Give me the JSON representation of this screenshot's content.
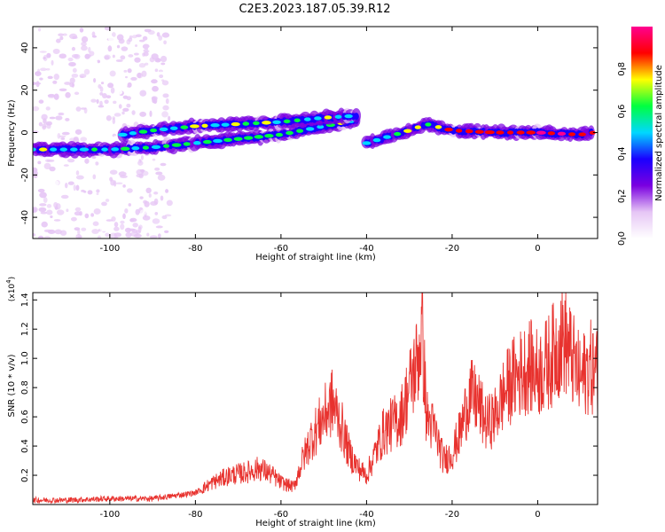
{
  "title": "C2E3.2023.187.05.39.R12",
  "colors": {
    "snr_line": "#e8322e",
    "axis": "#000000"
  },
  "chart_data": [
    {
      "type": "heatmap",
      "title": "C2E3.2023.187.05.39.R12",
      "xlabel": "Height of straight line (km)",
      "ylabel": "Frequency (Hz)",
      "xlim": [
        -118,
        14
      ],
      "ylim": [
        -50,
        50
      ],
      "xticks": [
        -100,
        -80,
        -60,
        -40,
        -20,
        0
      ],
      "yticks": [
        -40,
        -20,
        0,
        20,
        40
      ],
      "colorbar": {
        "label": "Normalized spectral amplitude",
        "range": [
          0,
          1
        ],
        "ticks": [
          "0.0",
          "0.2",
          "0.4",
          "0.6",
          "0.8"
        ],
        "colors": [
          "#ffffff",
          "#e6c6f5",
          "#7a00e0",
          "#1a00ff",
          "#00d8ff",
          "#00ff40",
          "#ffff00",
          "#ff0000",
          "#ff0090"
        ]
      },
      "ridges": [
        {
          "name": "lower",
          "points": [
            [
              -118,
              -8
            ],
            [
              -100,
              -8
            ],
            [
              -90,
              -7
            ],
            [
              -80,
              -5
            ],
            [
              -70,
              -3
            ],
            [
              -60,
              -1
            ],
            [
              -50,
              3
            ],
            [
              -42,
              6
            ]
          ]
        },
        {
          "name": "upper",
          "points": [
            [
              -97,
              -1
            ],
            [
              -90,
              1
            ],
            [
              -80,
              3
            ],
            [
              -70,
              4
            ],
            [
              -60,
              5
            ],
            [
              -50,
              7
            ],
            [
              -42,
              8
            ]
          ]
        },
        {
          "name": "right",
          "points": [
            [
              -40,
              -5
            ],
            [
              -35,
              -2
            ],
            [
              -30,
              1
            ],
            [
              -26,
              4
            ],
            [
              -22,
              2
            ],
            [
              -20,
              1
            ],
            [
              -10,
              0
            ],
            [
              0,
              0
            ],
            [
              10,
              -1
            ],
            [
              13,
              0
            ]
          ]
        }
      ]
    },
    {
      "type": "line",
      "xlabel": "Height of straight line (km)",
      "ylabel": "SNR (10 * v/v)",
      "scale_label": "(x10",
      "scale_exp": "4",
      "scale_close": ")",
      "xlim": [
        -118,
        14
      ],
      "ylim": [
        0,
        1.45
      ],
      "xticks": [
        -100,
        -80,
        -60,
        -40,
        -20,
        0
      ],
      "yticks": [
        0.2,
        0.4,
        0.6,
        0.8,
        1.0,
        1.2,
        1.4
      ],
      "ytick_labels": [
        "0.2",
        "0.4",
        "0.6",
        "0.8",
        "1.0",
        "1.2",
        "1.4"
      ],
      "series": [
        {
          "points": [
            [
              -118,
              0.03
            ],
            [
              -110,
              0.03
            ],
            [
              -100,
              0.04
            ],
            [
              -90,
              0.04
            ],
            [
              -85,
              0.06
            ],
            [
              -80,
              0.08
            ],
            [
              -76,
              0.15
            ],
            [
              -72,
              0.2
            ],
            [
              -68,
              0.22
            ],
            [
              -65,
              0.25
            ],
            [
              -62,
              0.2
            ],
            [
              -60,
              0.15
            ],
            [
              -57,
              0.12
            ],
            [
              -55,
              0.3
            ],
            [
              -53,
              0.45
            ],
            [
              -50,
              0.6
            ],
            [
              -48,
              0.7
            ],
            [
              -46,
              0.55
            ],
            [
              -44,
              0.35
            ],
            [
              -42,
              0.25
            ],
            [
              -40,
              0.2
            ],
            [
              -38,
              0.35
            ],
            [
              -36,
              0.5
            ],
            [
              -34,
              0.55
            ],
            [
              -32,
              0.6
            ],
            [
              -30,
              0.8
            ],
            [
              -29,
              0.9
            ],
            [
              -28,
              1.0
            ],
            [
              -27,
              1.2
            ],
            [
              -26,
              0.6
            ],
            [
              -24,
              0.5
            ],
            [
              -22,
              0.3
            ],
            [
              -20,
              0.35
            ],
            [
              -18,
              0.5
            ],
            [
              -16,
              0.75
            ],
            [
              -14,
              0.7
            ],
            [
              -12,
              0.55
            ],
            [
              -10,
              0.6
            ],
            [
              -8,
              0.75
            ],
            [
              -6,
              0.85
            ],
            [
              -4,
              0.9
            ],
            [
              -2,
              0.95
            ],
            [
              0,
              0.9
            ],
            [
              2,
              0.95
            ],
            [
              4,
              1.05
            ],
            [
              6,
              1.15
            ],
            [
              8,
              1.0
            ],
            [
              10,
              0.85
            ],
            [
              12,
              0.95
            ],
            [
              14,
              0.9
            ]
          ]
        }
      ]
    }
  ]
}
